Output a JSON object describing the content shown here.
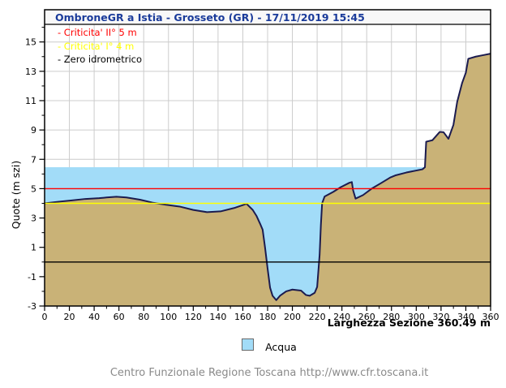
{
  "title": "OmbroneGR a Istia - Grosseto (GR) - 17/11/2019 15:45",
  "footer": "Centro Funzionale Regione Toscana http://www.cfr.toscana.it",
  "colors": {
    "title_text": "#1a3b9a",
    "title_bar_bg": "#f8f8f8",
    "grid": "#cccccc",
    "water": "#a2dcf8",
    "ground": "#c9b277",
    "profile_stroke": "#1b1b4f",
    "criticita2": "#ff0000",
    "criticita1": "#ffff00",
    "zero_line": "#000000",
    "axis": "#000000",
    "footer_text": "#8a8a8a"
  },
  "chart_data": {
    "type": "area",
    "title": "OmbroneGR a Istia - Grosseto (GR) - 17/11/2019 15:45",
    "xlabel": "Larghezza Sezione 360.49 m",
    "ylabel": "Quote (m szi)",
    "xlim": [
      0,
      360
    ],
    "ylim": [
      -3,
      16.2
    ],
    "x_ticks": [
      0,
      20,
      40,
      60,
      80,
      100,
      120,
      140,
      160,
      180,
      200,
      220,
      240,
      260,
      280,
      300,
      320,
      340,
      360
    ],
    "x_minor_step": 10,
    "y_ticks": [
      -3,
      -1,
      1,
      3,
      5,
      7,
      9,
      11,
      13,
      15
    ],
    "y_minor_step": 1,
    "grid": true,
    "section_width_m": 360.49,
    "water_level": 6.46,
    "thresholds": [
      {
        "label": "- Criticita' II° 5 m",
        "value": 5,
        "color": "#ff0000"
      },
      {
        "label": "- Criticita' I° 4 m",
        "value": 4,
        "color": "#ffff00"
      },
      {
        "label": "- Zero idrometrico",
        "value": 0,
        "color": "#000000"
      }
    ],
    "legend": [
      {
        "label": "Acqua",
        "color": "#a2dcf8"
      }
    ],
    "series": [
      {
        "name": "ground_profile",
        "points": [
          [
            0,
            4.0
          ],
          [
            10,
            4.1
          ],
          [
            22,
            4.2
          ],
          [
            33,
            4.3
          ],
          [
            44,
            4.35
          ],
          [
            50,
            4.4
          ],
          [
            58,
            4.45
          ],
          [
            66,
            4.4
          ],
          [
            77,
            4.25
          ],
          [
            87,
            4.05
          ],
          [
            98,
            3.9
          ],
          [
            109,
            3.78
          ],
          [
            120,
            3.55
          ],
          [
            131,
            3.4
          ],
          [
            142,
            3.45
          ],
          [
            153,
            3.68
          ],
          [
            160,
            3.88
          ],
          [
            163,
            3.97
          ],
          [
            168,
            3.55
          ],
          [
            171,
            3.15
          ],
          [
            174,
            2.6
          ],
          [
            176,
            2.2
          ],
          [
            178,
            0.95
          ],
          [
            180,
            -0.45
          ],
          [
            182,
            -1.75
          ],
          [
            184,
            -2.3
          ],
          [
            187,
            -2.6
          ],
          [
            190,
            -2.3
          ],
          [
            195,
            -2.0
          ],
          [
            200,
            -1.88
          ],
          [
            207,
            -1.95
          ],
          [
            211,
            -2.25
          ],
          [
            214,
            -2.3
          ],
          [
            218,
            -2.1
          ],
          [
            220,
            -1.7
          ],
          [
            222,
            0.5
          ],
          [
            223,
            2.5
          ],
          [
            224,
            4.0
          ],
          [
            226,
            4.46
          ],
          [
            233,
            4.78
          ],
          [
            239,
            5.1
          ],
          [
            246,
            5.4
          ],
          [
            248,
            5.45
          ],
          [
            249,
            4.9
          ],
          [
            251,
            4.32
          ],
          [
            257,
            4.56
          ],
          [
            264,
            5.0
          ],
          [
            272,
            5.4
          ],
          [
            279,
            5.76
          ],
          [
            283,
            5.9
          ],
          [
            292,
            6.1
          ],
          [
            305,
            6.32
          ],
          [
            307,
            6.46
          ],
          [
            308,
            8.2
          ],
          [
            313,
            8.3
          ],
          [
            319,
            8.87
          ],
          [
            322,
            8.85
          ],
          [
            326,
            8.4
          ],
          [
            330,
            9.35
          ],
          [
            333,
            10.9
          ],
          [
            337,
            12.2
          ],
          [
            340,
            12.9
          ],
          [
            342,
            13.85
          ],
          [
            348,
            14.0
          ],
          [
            354,
            14.1
          ],
          [
            360,
            14.2
          ]
        ]
      }
    ],
    "water_extends_to_x": 307
  }
}
